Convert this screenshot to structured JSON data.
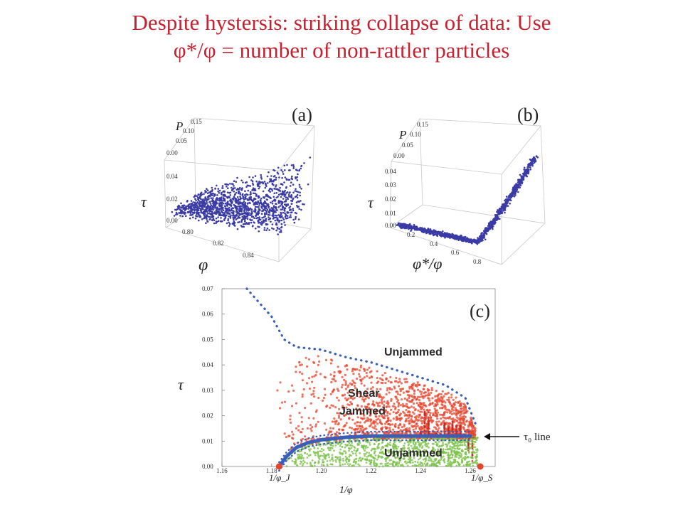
{
  "slide": {
    "title_line1": "Despite hystersis: striking collapse of data: Use",
    "title_line2": "φ*/φ = number of non-rattler particles",
    "title_color": "#c8202f"
  },
  "panels": {
    "a": {
      "label": "(a)",
      "p_axis_label": "P",
      "p_ticks": [
        "0.15",
        "0.10",
        "0.05",
        "0.00"
      ],
      "tau_axis_label": "τ",
      "tau_ticks": [
        "0.04",
        "0.02",
        "0.00"
      ],
      "phi_axis_label": "φ",
      "phi_ticks": [
        "0.80",
        "0.82",
        "0.84"
      ]
    },
    "b": {
      "label": "(b)",
      "p_axis_label": "P",
      "p_ticks": [
        "0.15",
        "0.10",
        "0.05",
        "0.00"
      ],
      "tau_axis_label": "τ",
      "tau_ticks": [
        "0.04",
        "0.03",
        "0.02",
        "0.01",
        "0.00"
      ],
      "x_axis_label": "φ*/φ",
      "x_ticks": [
        "0.2",
        "0.4",
        "0.6",
        "0.8"
      ]
    },
    "c": {
      "label": "(c)",
      "y_axis_label": "τ",
      "x_axis_label": "1/φ",
      "region_unjammed_top": "Unjammed",
      "region_shear": "Shear",
      "region_jammed": "Jammed",
      "region_unjammed_bottom": "Unjammed",
      "tau0_label": "τ₀ line",
      "phi_j_label": "1/φ_J",
      "phi_s_label": "1/φ_S"
    }
  },
  "colors": {
    "dots_3d": "#3b3ba6",
    "red_points": "#e8452e",
    "green_points": "#7cc24a",
    "boundary_line": "#3a5fb8"
  },
  "chart_data": [
    {
      "type": "scatter",
      "title": "(a)",
      "xlabel": "φ",
      "ylabel": "τ",
      "zlabel": "P",
      "xlim": [
        0.79,
        0.85
      ],
      "ylim": [
        0.0,
        0.05
      ],
      "zlim": [
        0.0,
        0.15
      ],
      "x_ticks": [
        0.8,
        0.82,
        0.84
      ],
      "y_ticks": [
        0.0,
        0.02,
        0.04
      ],
      "z_ticks": [
        0.0,
        0.05,
        0.1,
        0.15
      ],
      "note": "3D point cloud, scattered widely (hysteresis)"
    },
    {
      "type": "scatter",
      "title": "(b)",
      "xlabel": "φ*/φ",
      "ylabel": "τ",
      "zlabel": "P",
      "xlim": [
        0.1,
        0.9
      ],
      "ylim": [
        0.0,
        0.05
      ],
      "zlim": [
        0.0,
        0.15
      ],
      "x_ticks": [
        0.2,
        0.4,
        0.6,
        0.8
      ],
      "y_ticks": [
        0.0,
        0.01,
        0.02,
        0.03,
        0.04
      ],
      "z_ticks": [
        0.0,
        0.05,
        0.1,
        0.15
      ],
      "note": "3D point cloud collapsing onto a single curve"
    },
    {
      "type": "scatter",
      "title": "(c)",
      "xlabel": "1/φ",
      "ylabel": "τ",
      "xlim": [
        1.16,
        1.27
      ],
      "ylim": [
        0.0,
        0.07
      ],
      "x_ticks": [
        1.16,
        1.18,
        1.2,
        1.22,
        1.24,
        1.26
      ],
      "y_ticks": [
        0.0,
        0.01,
        0.02,
        0.03,
        0.04,
        0.05,
        0.06,
        0.07
      ],
      "upper_boundary": {
        "x": [
          1.17,
          1.18,
          1.185,
          1.19,
          1.2,
          1.21,
          1.22,
          1.23,
          1.24,
          1.25,
          1.258,
          1.262
        ],
        "y": [
          0.07,
          0.059,
          0.05,
          0.047,
          0.046,
          0.043,
          0.041,
          0.038,
          0.035,
          0.032,
          0.027,
          0.017
        ]
      },
      "tau0_line": {
        "x": [
          1.183,
          1.186,
          1.19,
          1.195,
          1.2,
          1.21,
          1.22,
          1.23,
          1.24,
          1.25,
          1.26
        ],
        "y": [
          0.0,
          0.004,
          0.0075,
          0.0095,
          0.0105,
          0.0115,
          0.012,
          0.012,
          0.012,
          0.012,
          0.012
        ]
      },
      "marked_points": [
        {
          "label": "1/φ_J",
          "x": 1.183,
          "y": 0.0
        },
        {
          "label": "1/φ_S",
          "x": 1.264,
          "y": 0.0
        }
      ],
      "series": [
        {
          "name": "Shear Jammed",
          "region": {
            "x": [
              1.182,
              1.262
            ],
            "y": [
              0.012,
              0.05
            ]
          }
        },
        {
          "name": "Unjammed",
          "region": {
            "x": [
              1.19,
              1.262
            ],
            "y": [
              0.0,
              0.012
            ]
          }
        }
      ]
    }
  ]
}
